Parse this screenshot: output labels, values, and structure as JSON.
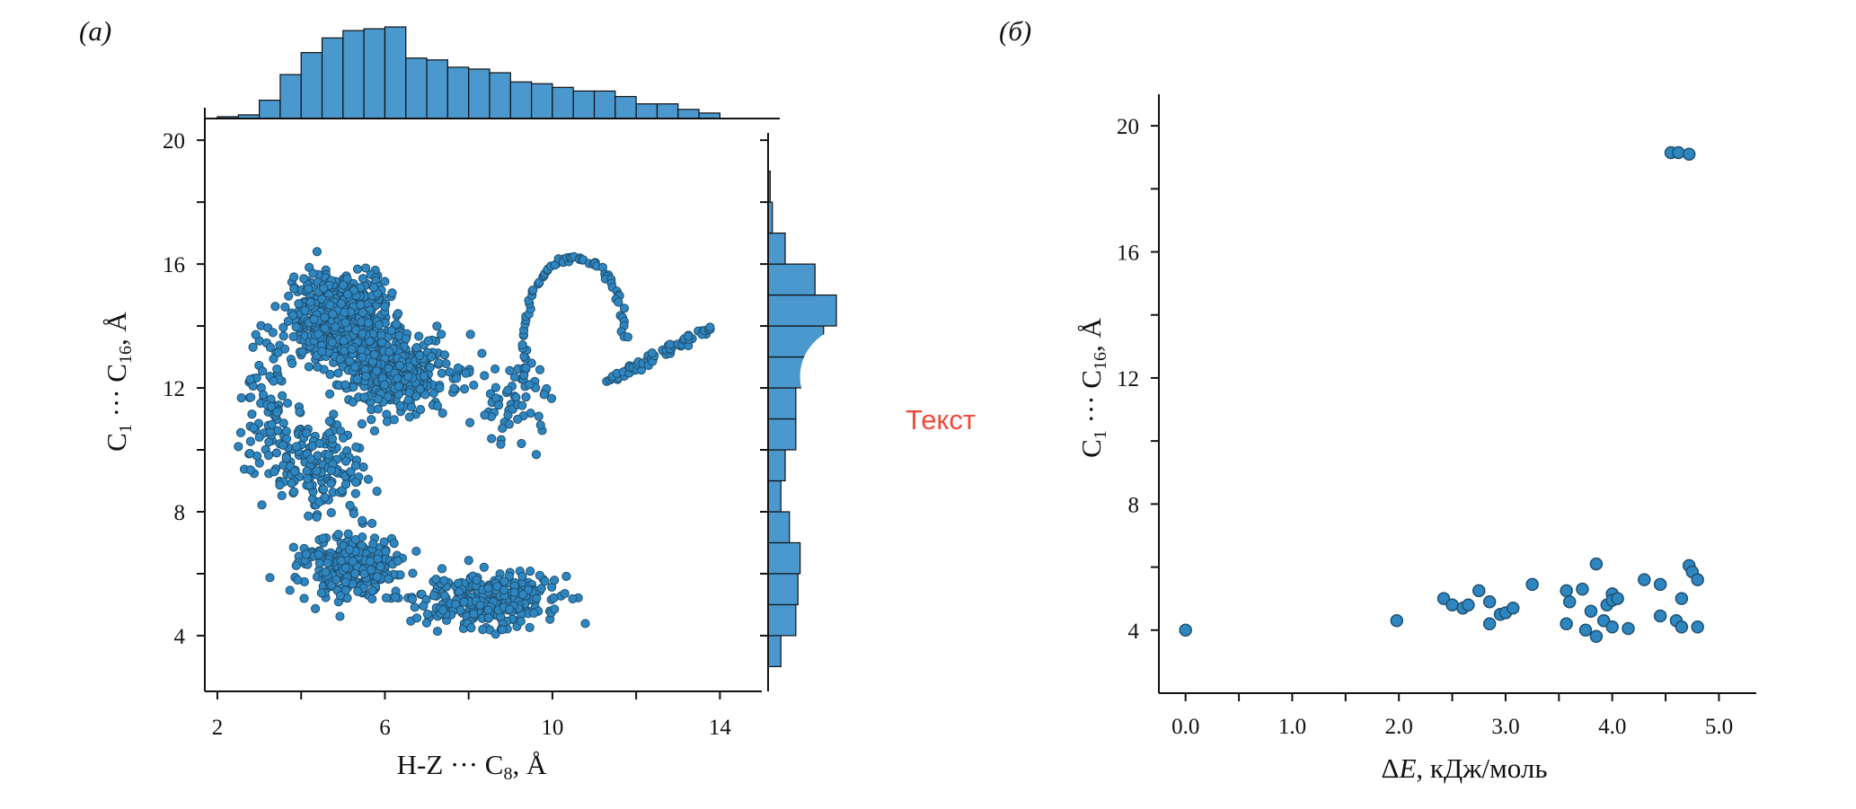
{
  "colors": {
    "accent": "#3b8fc8",
    "marker_fill": "#2e86c1",
    "marker_edge": "#1f4f6e",
    "bar_fill": "#4a98cd",
    "axis": "#111111",
    "overlay_text": "#f04a3a"
  },
  "overlay": {
    "text": "Текст"
  },
  "chart_data": [
    {
      "type": "scatter",
      "panel_label": "(а)",
      "title": "",
      "xlabel": "H-Z ··· C8, Å",
      "ylabel": "C1 ··· C16, Å",
      "xlim": [
        1.7,
        15.0
      ],
      "ylim": [
        2.2,
        20.7
      ],
      "xticks": [
        "2",
        "6",
        "10",
        "14"
      ],
      "yticks": [
        "4",
        "8",
        "12",
        "16",
        "20"
      ],
      "grid": false,
      "marginal_x_histogram": {
        "bins": [
          2,
          2.5,
          3,
          3.5,
          4,
          4.5,
          5,
          5.5,
          6,
          6.5,
          7,
          7.5,
          8,
          8.5,
          9,
          9.5,
          10,
          10.5,
          11,
          11.5,
          12,
          12.5,
          13,
          13.5,
          14
        ],
        "counts": [
          0.5,
          1.0,
          5.0,
          12.0,
          18.0,
          22.0,
          24.0,
          24.5,
          25.0,
          16.5,
          16.0,
          14.0,
          13.5,
          12.5,
          10.0,
          9.5,
          8.5,
          7.5,
          7.5,
          6.0,
          4.0,
          4.0,
          2.5,
          1.5,
          2.5
        ]
      },
      "marginal_y_histogram": {
        "bins": [
          3,
          4,
          5,
          6,
          7,
          8,
          9,
          10,
          11,
          12,
          13,
          14,
          15,
          16,
          17,
          18,
          19,
          20
        ],
        "counts": [
          3,
          6.5,
          7,
          7.5,
          5,
          3,
          4,
          6.5,
          6.5,
          9,
          13,
          16,
          11,
          4,
          1,
          0.5,
          0
        ]
      },
      "points_summary": "approx. 2000 points: dense cluster near x≈4–7, y≈11–16; secondary cluster x≈3–12, y≈3–8; tail of points along curve x≈7–14, y≈12–16"
    },
    {
      "type": "scatter",
      "panel_label": "(б)",
      "title": "",
      "xlabel": "ΔE, кДж/моль",
      "ylabel": "C1 ··· C16, Å",
      "xlim": [
        -0.25,
        5.35
      ],
      "ylim": [
        2.0,
        21.0
      ],
      "xticks": [
        "0.0",
        "1.0",
        "2.0",
        "3.0",
        "4.0",
        "5.0"
      ],
      "yticks": [
        "4",
        "8",
        "12",
        "16",
        "20"
      ],
      "grid": false,
      "points": [
        [
          0.0,
          4.0
        ],
        [
          1.98,
          4.3
        ],
        [
          2.42,
          5.0
        ],
        [
          2.5,
          4.8
        ],
        [
          2.6,
          4.7
        ],
        [
          2.65,
          4.8
        ],
        [
          2.75,
          5.25
        ],
        [
          2.85,
          4.9
        ],
        [
          2.85,
          4.2
        ],
        [
          2.95,
          4.5
        ],
        [
          3.0,
          4.55
        ],
        [
          3.07,
          4.7
        ],
        [
          3.25,
          5.45
        ],
        [
          3.57,
          5.25
        ],
        [
          3.57,
          4.2
        ],
        [
          3.6,
          4.9
        ],
        [
          3.72,
          5.3
        ],
        [
          3.75,
          4.0
        ],
        [
          3.8,
          4.6
        ],
        [
          3.85,
          6.1
        ],
        [
          3.85,
          3.8
        ],
        [
          3.92,
          4.3
        ],
        [
          3.95,
          4.8
        ],
        [
          4.0,
          5.15
        ],
        [
          4.0,
          4.95
        ],
        [
          4.0,
          4.1
        ],
        [
          4.05,
          5.0
        ],
        [
          4.15,
          4.05
        ],
        [
          4.3,
          5.6
        ],
        [
          4.45,
          5.45
        ],
        [
          4.45,
          4.45
        ],
        [
          4.6,
          4.3
        ],
        [
          4.65,
          4.1
        ],
        [
          4.65,
          5.0
        ],
        [
          4.72,
          6.05
        ],
        [
          4.75,
          5.85
        ],
        [
          4.8,
          5.6
        ],
        [
          4.8,
          4.1
        ],
        [
          4.55,
          19.15
        ],
        [
          4.62,
          19.15
        ],
        [
          4.72,
          19.1
        ]
      ]
    }
  ]
}
